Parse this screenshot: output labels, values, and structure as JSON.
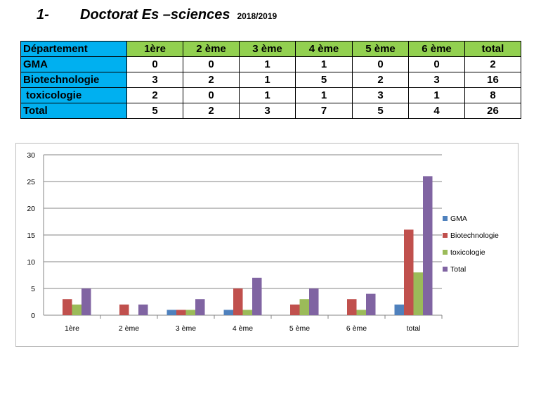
{
  "heading": {
    "number": "1-",
    "title": "Doctorat  Es –sciences",
    "year": "2018/2019"
  },
  "table": {
    "header": [
      "Département",
      "1ère",
      "2 ème",
      "3 ème",
      "4 ème",
      "5 ème",
      "6 ème",
      "total"
    ],
    "rows": [
      {
        "label": "GMA",
        "values": [
          "0",
          "0",
          "1",
          "1",
          "0",
          "0",
          "2"
        ]
      },
      {
        "label": "Biotechnologie",
        "values": [
          "3",
          "2",
          "1",
          "5",
          "2",
          "3",
          "16"
        ]
      },
      {
        "label": " toxicologie",
        "values": [
          "2",
          "0",
          "1",
          "1",
          "3",
          "1",
          "8"
        ]
      },
      {
        "label": "Total",
        "values": [
          "5",
          "2",
          "3",
          "7",
          "5",
          "4",
          "26"
        ]
      }
    ]
  },
  "chart_data": {
    "type": "bar",
    "categories": [
      "1ère",
      "2 ème",
      "3 ème",
      "4 ème",
      "5 ème",
      "6 ème",
      "total"
    ],
    "series": [
      {
        "name": "GMA",
        "color": "#4f81bd",
        "values": [
          0,
          0,
          1,
          1,
          0,
          0,
          2
        ]
      },
      {
        "name": "Biotechnologie",
        "color": "#c0504d",
        "values": [
          3,
          2,
          1,
          5,
          2,
          3,
          16
        ]
      },
      {
        "name": "toxicologie",
        "color": "#9bbb59",
        "values": [
          2,
          0,
          1,
          1,
          3,
          1,
          8
        ]
      },
      {
        "name": "Total",
        "color": "#8064a2",
        "values": [
          5,
          2,
          3,
          7,
          5,
          4,
          26
        ]
      }
    ],
    "yticks": [
      "0",
      "5",
      "10",
      "15",
      "20",
      "25",
      "30"
    ],
    "ylim": [
      0,
      30
    ],
    "grid": true,
    "legend": "right"
  }
}
